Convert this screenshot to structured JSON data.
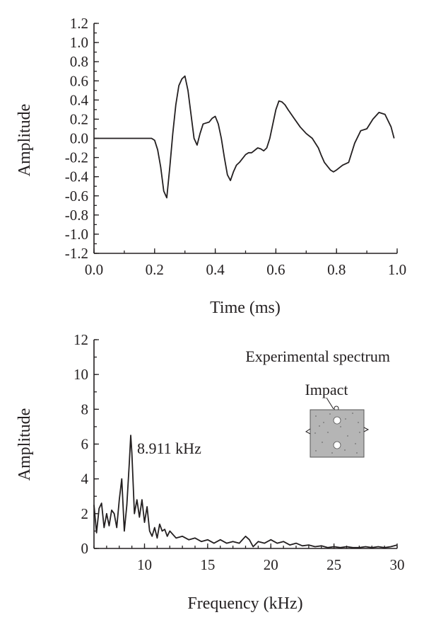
{
  "chart_data": [
    {
      "type": "line",
      "xlabel": "Time (ms)",
      "ylabel": "Amplitude",
      "xlim": [
        0.0,
        1.0
      ],
      "ylim": [
        -1.2,
        1.2
      ],
      "x_ticks": [
        "0.0",
        "0.2",
        "0.4",
        "0.6",
        "0.8",
        "1.0"
      ],
      "y_ticks": [
        "1.2",
        "1.0",
        "0.8",
        "0.6",
        "0.4",
        "0.2",
        "0.0",
        "-0.2",
        "-0.4",
        "-0.6",
        "-0.8",
        "-1.0",
        "-1.2"
      ],
      "grid": false,
      "series": [
        {
          "x": [
            0.0,
            0.1,
            0.19,
            0.2,
            0.21,
            0.22,
            0.23,
            0.24,
            0.25,
            0.26,
            0.27,
            0.28,
            0.29,
            0.3,
            0.31,
            0.32,
            0.33,
            0.34,
            0.35,
            0.36,
            0.37,
            0.38,
            0.39,
            0.4,
            0.41,
            0.42,
            0.43,
            0.44,
            0.45,
            0.46,
            0.47,
            0.48,
            0.5,
            0.51,
            0.52,
            0.54,
            0.55,
            0.56,
            0.57,
            0.58,
            0.59,
            0.6,
            0.61,
            0.62,
            0.63,
            0.64,
            0.66,
            0.68,
            0.7,
            0.72,
            0.74,
            0.75,
            0.76,
            0.78,
            0.79,
            0.8,
            0.82,
            0.84,
            0.86,
            0.88,
            0.9,
            0.92,
            0.94,
            0.96,
            0.98,
            0.99
          ],
          "y": [
            0.0,
            0.0,
            0.0,
            -0.02,
            -0.12,
            -0.3,
            -0.55,
            -0.62,
            -0.3,
            0.05,
            0.35,
            0.55,
            0.62,
            0.65,
            0.5,
            0.25,
            0.0,
            -0.07,
            0.05,
            0.15,
            0.16,
            0.17,
            0.21,
            0.23,
            0.15,
            0.0,
            -0.2,
            -0.38,
            -0.44,
            -0.35,
            -0.28,
            -0.25,
            -0.17,
            -0.15,
            -0.15,
            -0.1,
            -0.11,
            -0.13,
            -0.1,
            0.0,
            0.15,
            0.3,
            0.39,
            0.38,
            0.35,
            0.3,
            0.21,
            0.12,
            0.05,
            0.0,
            -0.1,
            -0.18,
            -0.25,
            -0.33,
            -0.35,
            -0.33,
            -0.28,
            -0.25,
            -0.05,
            0.08,
            0.1,
            0.2,
            0.27,
            0.25,
            0.12,
            0.0
          ]
        }
      ]
    },
    {
      "type": "line",
      "xlabel": "Frequency (kHz)",
      "ylabel": "Amplitude",
      "xlim": [
        6,
        30
      ],
      "ylim": [
        0,
        12
      ],
      "x_ticks": [
        "10",
        "15",
        "20",
        "25",
        "30"
      ],
      "y_ticks": [
        "12",
        "10",
        "8",
        "6",
        "4",
        "2",
        "0"
      ],
      "grid": false,
      "annotations": {
        "spectrum_label": "Experimental spectrum",
        "peak_label": "8.911 kHz",
        "inset_label": "Impact"
      },
      "series": [
        {
          "x": [
            6.0,
            6.2,
            6.4,
            6.6,
            6.8,
            7.0,
            7.2,
            7.4,
            7.6,
            7.8,
            8.0,
            8.2,
            8.4,
            8.6,
            8.8,
            8.911,
            9.0,
            9.2,
            9.4,
            9.6,
            9.8,
            10.0,
            10.2,
            10.4,
            10.6,
            10.8,
            11.0,
            11.2,
            11.4,
            11.6,
            11.8,
            12.0,
            12.5,
            13.0,
            13.5,
            14.0,
            14.5,
            15.0,
            15.5,
            16.0,
            16.5,
            17.0,
            17.5,
            18.0,
            18.3,
            18.6,
            19.0,
            19.5,
            20.0,
            20.5,
            21.0,
            21.5,
            22.0,
            22.5,
            23.0,
            23.5,
            24.0,
            24.5,
            25.0,
            25.5,
            26.0,
            26.5,
            27.0,
            27.5,
            28.0,
            28.5,
            29.0,
            29.5,
            30.0
          ],
          "y": [
            2.5,
            0.9,
            2.3,
            2.6,
            1.2,
            2.0,
            1.3,
            2.2,
            2.0,
            1.2,
            2.8,
            4.0,
            1.0,
            2.5,
            5.0,
            6.5,
            5.5,
            2.0,
            2.8,
            1.8,
            2.8,
            1.5,
            2.4,
            1.0,
            0.7,
            1.2,
            0.6,
            1.4,
            1.0,
            1.1,
            0.7,
            1.0,
            0.6,
            0.7,
            0.5,
            0.6,
            0.4,
            0.5,
            0.3,
            0.5,
            0.3,
            0.4,
            0.3,
            0.7,
            0.5,
            0.1,
            0.4,
            0.3,
            0.5,
            0.3,
            0.4,
            0.2,
            0.3,
            0.15,
            0.2,
            0.1,
            0.15,
            0.05,
            0.1,
            0.05,
            0.1,
            0.05,
            0.05,
            0.1,
            0.05,
            0.1,
            0.05,
            0.1,
            0.2
          ]
        }
      ]
    }
  ]
}
